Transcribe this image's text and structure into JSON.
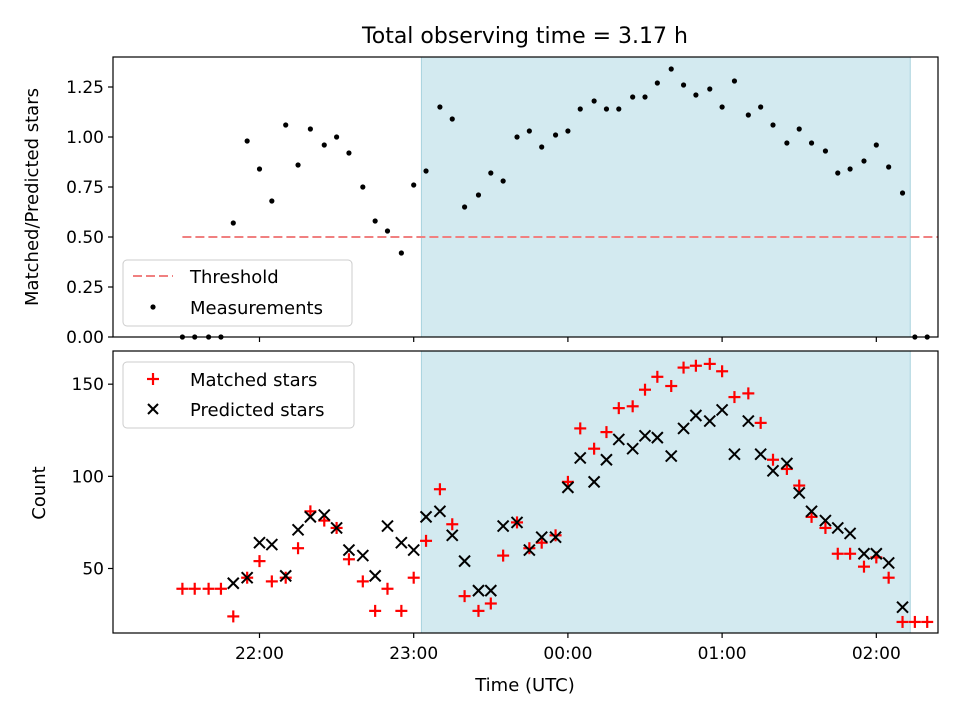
{
  "figure": {
    "title": "Total observing time = 3.17 h"
  },
  "chart_data": [
    {
      "type": "scatter",
      "title": "Total observing time = 3.17 h",
      "xlabel": "",
      "ylabel": "Matched/Predicted stars",
      "x_unit": "hours UTC (values past 24 are after midnight)",
      "xlim": [
        21.05,
        26.4
      ],
      "ylim": [
        0,
        1.4
      ],
      "yticks": [
        0.0,
        0.25,
        0.5,
        0.75,
        1.0,
        1.25
      ],
      "ytick_labels": [
        "0.00",
        "0.25",
        "0.50",
        "0.75",
        "1.00",
        "1.25"
      ],
      "grid": false,
      "legend_position": "lower-left",
      "shaded_region": {
        "x_start": 23.05,
        "x_end": 26.22,
        "color": "#d3eaf0"
      },
      "threshold": {
        "name": "Threshold",
        "value": 0.5,
        "x_start": 21.5,
        "x_end": 26.4,
        "color": "#f08080",
        "style": "dashed"
      },
      "series": [
        {
          "name": "Measurements",
          "color": "#000000",
          "marker": "dot",
          "points": [
            [
              21.5,
              0.0
            ],
            [
              21.58,
              0.0
            ],
            [
              21.67,
              0.0
            ],
            [
              21.75,
              0.0
            ],
            [
              21.83,
              0.57
            ],
            [
              21.92,
              0.98
            ],
            [
              22.0,
              0.84
            ],
            [
              22.08,
              0.68
            ],
            [
              22.17,
              1.06
            ],
            [
              22.25,
              0.86
            ],
            [
              22.33,
              1.04
            ],
            [
              22.42,
              0.96
            ],
            [
              22.5,
              1.0
            ],
            [
              22.58,
              0.92
            ],
            [
              22.67,
              0.75
            ],
            [
              22.75,
              0.58
            ],
            [
              22.83,
              0.53
            ],
            [
              22.92,
              0.42
            ],
            [
              23.0,
              0.76
            ],
            [
              23.08,
              0.83
            ],
            [
              23.17,
              1.15
            ],
            [
              23.25,
              1.09
            ],
            [
              23.33,
              0.65
            ],
            [
              23.42,
              0.71
            ],
            [
              23.5,
              0.82
            ],
            [
              23.58,
              0.78
            ],
            [
              23.67,
              1.0
            ],
            [
              23.75,
              1.03
            ],
            [
              23.83,
              0.95
            ],
            [
              23.92,
              1.01
            ],
            [
              24.0,
              1.03
            ],
            [
              24.08,
              1.14
            ],
            [
              24.17,
              1.18
            ],
            [
              24.25,
              1.14
            ],
            [
              24.33,
              1.14
            ],
            [
              24.42,
              1.2
            ],
            [
              24.5,
              1.2
            ],
            [
              24.58,
              1.27
            ],
            [
              24.67,
              1.34
            ],
            [
              24.75,
              1.26
            ],
            [
              24.83,
              1.21
            ],
            [
              24.92,
              1.24
            ],
            [
              25.0,
              1.15
            ],
            [
              25.08,
              1.28
            ],
            [
              25.17,
              1.11
            ],
            [
              25.25,
              1.15
            ],
            [
              25.33,
              1.06
            ],
            [
              25.42,
              0.97
            ],
            [
              25.5,
              1.04
            ],
            [
              25.58,
              0.97
            ],
            [
              25.67,
              0.93
            ],
            [
              25.75,
              0.82
            ],
            [
              25.83,
              0.84
            ],
            [
              25.92,
              0.88
            ],
            [
              26.0,
              0.96
            ],
            [
              26.08,
              0.85
            ],
            [
              26.17,
              0.72
            ],
            [
              26.25,
              0.0
            ],
            [
              26.33,
              0.0
            ]
          ]
        }
      ]
    },
    {
      "type": "scatter",
      "title": "",
      "xlabel": "Time (UTC)",
      "ylabel": "Count",
      "x_unit": "hours UTC (values past 24 are after midnight)",
      "xlim": [
        21.05,
        26.4
      ],
      "ylim": [
        15,
        168
      ],
      "xticks": [
        22,
        23,
        24,
        25,
        26
      ],
      "xtick_labels": [
        "22:00",
        "23:00",
        "00:00",
        "01:00",
        "02:00"
      ],
      "yticks": [
        50,
        100,
        150
      ],
      "ytick_labels": [
        "50",
        "100",
        "150"
      ],
      "grid": false,
      "legend_position": "upper-left",
      "shaded_region": {
        "x_start": 23.05,
        "x_end": 26.22,
        "color": "#d3eaf0"
      },
      "series": [
        {
          "name": "Matched stars",
          "color": "#ff0000",
          "marker": "plus",
          "points": [
            [
              21.5,
              39
            ],
            [
              21.58,
              39
            ],
            [
              21.67,
              39
            ],
            [
              21.75,
              39
            ],
            [
              21.83,
              24
            ],
            [
              21.92,
              45
            ],
            [
              22.0,
              54
            ],
            [
              22.08,
              43
            ],
            [
              22.17,
              45
            ],
            [
              22.25,
              61
            ],
            [
              22.33,
              81
            ],
            [
              22.42,
              76
            ],
            [
              22.5,
              72
            ],
            [
              22.58,
              55
            ],
            [
              22.67,
              43
            ],
            [
              22.75,
              27
            ],
            [
              22.83,
              39
            ],
            [
              22.92,
              27
            ],
            [
              23.0,
              45
            ],
            [
              23.08,
              65
            ],
            [
              23.17,
              93
            ],
            [
              23.25,
              74
            ],
            [
              23.33,
              35
            ],
            [
              23.42,
              27
            ],
            [
              23.5,
              31
            ],
            [
              23.58,
              57
            ],
            [
              23.67,
              75
            ],
            [
              23.75,
              61
            ],
            [
              23.83,
              64
            ],
            [
              23.92,
              68
            ],
            [
              24.0,
              97
            ],
            [
              24.08,
              126
            ],
            [
              24.17,
              115
            ],
            [
              24.25,
              124
            ],
            [
              24.33,
              137
            ],
            [
              24.42,
              138
            ],
            [
              24.5,
              147
            ],
            [
              24.58,
              154
            ],
            [
              24.67,
              149
            ],
            [
              24.75,
              159
            ],
            [
              24.83,
              160
            ],
            [
              24.92,
              161
            ],
            [
              25.0,
              157
            ],
            [
              25.08,
              143
            ],
            [
              25.17,
              145
            ],
            [
              25.25,
              129
            ],
            [
              25.33,
              109
            ],
            [
              25.42,
              104
            ],
            [
              25.5,
              95
            ],
            [
              25.58,
              78
            ],
            [
              25.67,
              72
            ],
            [
              25.75,
              58
            ],
            [
              25.83,
              58
            ],
            [
              25.92,
              51
            ],
            [
              26.0,
              56
            ],
            [
              26.08,
              45
            ],
            [
              26.17,
              21
            ],
            [
              26.25,
              21
            ],
            [
              26.33,
              21
            ]
          ]
        },
        {
          "name": "Predicted stars",
          "color": "#000000",
          "marker": "x",
          "points": [
            [
              21.83,
              42
            ],
            [
              21.92,
              45
            ],
            [
              22.0,
              64
            ],
            [
              22.08,
              63
            ],
            [
              22.17,
              46
            ],
            [
              22.25,
              71
            ],
            [
              22.33,
              78
            ],
            [
              22.42,
              79
            ],
            [
              22.5,
              72
            ],
            [
              22.58,
              60
            ],
            [
              22.67,
              57
            ],
            [
              22.75,
              46
            ],
            [
              22.83,
              73
            ],
            [
              22.92,
              64
            ],
            [
              23.0,
              60
            ],
            [
              23.08,
              78
            ],
            [
              23.17,
              81
            ],
            [
              23.25,
              68
            ],
            [
              23.33,
              54
            ],
            [
              23.42,
              38
            ],
            [
              23.5,
              38
            ],
            [
              23.58,
              73
            ],
            [
              23.67,
              75
            ],
            [
              23.75,
              60
            ],
            [
              23.83,
              67
            ],
            [
              23.92,
              67
            ],
            [
              24.0,
              94
            ],
            [
              24.08,
              110
            ],
            [
              24.17,
              97
            ],
            [
              24.25,
              109
            ],
            [
              24.33,
              120
            ],
            [
              24.42,
              115
            ],
            [
              24.5,
              122
            ],
            [
              24.58,
              121
            ],
            [
              24.67,
              111
            ],
            [
              24.75,
              126
            ],
            [
              24.83,
              133
            ],
            [
              24.92,
              130
            ],
            [
              25.0,
              136
            ],
            [
              25.08,
              112
            ],
            [
              25.17,
              130
            ],
            [
              25.25,
              112
            ],
            [
              25.33,
              103
            ],
            [
              25.42,
              107
            ],
            [
              25.5,
              91
            ],
            [
              25.58,
              81
            ],
            [
              25.67,
              76
            ],
            [
              25.75,
              72
            ],
            [
              25.83,
              69
            ],
            [
              25.92,
              58
            ],
            [
              26.0,
              58
            ],
            [
              26.08,
              53
            ],
            [
              26.17,
              29
            ]
          ]
        }
      ]
    }
  ]
}
